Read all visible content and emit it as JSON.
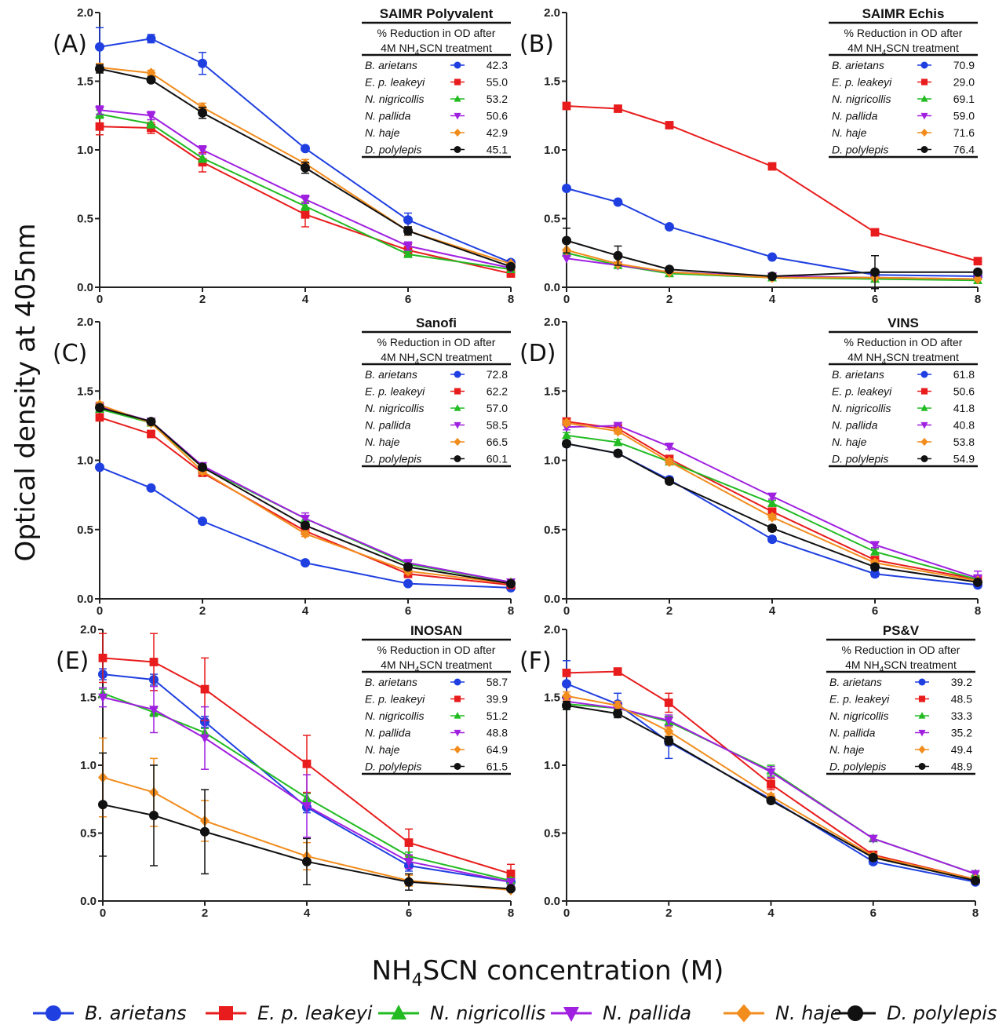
{
  "figure": {
    "ylabel": "Optical density at 405nm",
    "xlabel_main": "NH",
    "xlabel_sub": "4",
    "xlabel_rest": "SCN concentration (M)"
  },
  "series_styles": [
    {
      "name": "B. arietans",
      "color": "#1f3fe0",
      "marker": "circle"
    },
    {
      "name": "E. p. leakeyi",
      "color": "#e81c1c",
      "marker": "square"
    },
    {
      "name": "N. nigricollis",
      "color": "#22bb22",
      "marker": "triangle-up"
    },
    {
      "name": "N. pallida",
      "color": "#a020e0",
      "marker": "triangle-down"
    },
    {
      "name": "N. haje",
      "color": "#f28c1c",
      "marker": "diamond"
    },
    {
      "name": "D. polylepis",
      "color": "#111111",
      "marker": "circle"
    }
  ],
  "chart_data": [
    {
      "type": "line",
      "panel": "(A)",
      "title": "SAIMR Polyvalent",
      "table_header_1": "% Reduction in OD after",
      "table_header_2a": "4M NH",
      "table_header_2sub": "4",
      "table_header_2b": "SCN treatment",
      "x": [
        0,
        1,
        2,
        4,
        6,
        8
      ],
      "xticks": [
        0,
        2,
        4,
        6,
        8
      ],
      "ylim": [
        0,
        2
      ],
      "yticks": [
        "0.0",
        "0.5",
        "1.0",
        "1.5",
        "2.0"
      ],
      "series": [
        {
          "name": "B. arietans",
          "values": [
            1.75,
            1.81,
            1.63,
            1.01,
            0.49,
            0.18
          ],
          "err": [
            0.14,
            0.03,
            0.08,
            0.01,
            0.05,
            0.01
          ],
          "reduction": "42.3"
        },
        {
          "name": "E. p. leakeyi",
          "values": [
            1.17,
            1.16,
            0.91,
            0.53,
            0.27,
            0.1
          ],
          "err": [
            0.06,
            0.04,
            0.07,
            0.09,
            0.04,
            0.01
          ],
          "reduction": "55.0"
        },
        {
          "name": "N. nigricollis",
          "values": [
            1.26,
            1.19,
            0.94,
            0.59,
            0.24,
            0.13
          ],
          "err": [
            0.03,
            0.03,
            0.03,
            0.03,
            0.02,
            0.01
          ],
          "reduction": "53.2"
        },
        {
          "name": "N. pallida",
          "values": [
            1.29,
            1.25,
            1.0,
            0.64,
            0.3,
            0.14
          ],
          "err": [
            0.03,
            0.03,
            0.03,
            0.03,
            0.03,
            0.01
          ],
          "reduction": "50.6"
        },
        {
          "name": "N. haje",
          "values": [
            1.6,
            1.56,
            1.31,
            0.9,
            0.41,
            0.17
          ],
          "err": [
            0.03,
            0.02,
            0.03,
            0.03,
            0.03,
            0.01
          ],
          "reduction": "42.9"
        },
        {
          "name": "D. polylepis",
          "values": [
            1.59,
            1.51,
            1.27,
            0.87,
            0.41,
            0.15
          ],
          "err": [
            0.03,
            0.02,
            0.04,
            0.04,
            0.03,
            0.01
          ],
          "reduction": "45.1"
        }
      ]
    },
    {
      "type": "line",
      "panel": "(B)",
      "title": "SAIMR Echis",
      "table_header_1": "% Reduction in OD after",
      "table_header_2a": "4M NH",
      "table_header_2sub": "4",
      "table_header_2b": "SCN treatment",
      "x": [
        0,
        1,
        2,
        4,
        6,
        8
      ],
      "xticks": [
        0,
        2,
        4,
        6,
        8
      ],
      "ylim": [
        0,
        2
      ],
      "yticks": [
        "0.0",
        "0.5",
        "1.0",
        "1.5",
        "2.0"
      ],
      "series": [
        {
          "name": "B. arietans",
          "values": [
            0.72,
            0.62,
            0.44,
            0.22,
            0.09,
            0.08
          ],
          "err": [
            0.01,
            0.01,
            0.01,
            0.01,
            0.01,
            0.01
          ],
          "reduction": "70.9"
        },
        {
          "name": "E. p. leakeyi",
          "values": [
            1.32,
            1.3,
            1.18,
            0.88,
            0.4,
            0.19
          ],
          "err": [
            0.01,
            0.01,
            0.01,
            0.01,
            0.01,
            0.01
          ],
          "reduction": "29.0"
        },
        {
          "name": "N. nigricollis",
          "values": [
            0.25,
            0.16,
            0.1,
            0.07,
            0.06,
            0.05
          ],
          "err": [
            0.01,
            0.01,
            0.01,
            0.01,
            0.01,
            0.01
          ],
          "reduction": "69.1"
        },
        {
          "name": "N. pallida",
          "values": [
            0.21,
            0.16,
            0.11,
            0.08,
            0.07,
            0.06
          ],
          "err": [
            0.01,
            0.01,
            0.01,
            0.01,
            0.01,
            0.01
          ],
          "reduction": "59.0"
        },
        {
          "name": "N. haje",
          "values": [
            0.27,
            0.17,
            0.11,
            0.07,
            0.07,
            0.06
          ],
          "err": [
            0.01,
            0.01,
            0.01,
            0.01,
            0.01,
            0.01
          ],
          "reduction": "71.6"
        },
        {
          "name": "D. polylepis",
          "values": [
            0.34,
            0.23,
            0.13,
            0.08,
            0.11,
            0.11
          ],
          "err": [
            0.09,
            0.07,
            0.01,
            0.01,
            0.12,
            0.01
          ],
          "reduction": "76.4"
        }
      ]
    },
    {
      "type": "line",
      "panel": "(C)",
      "title": "Sanofi",
      "table_header_1": "% Reduction in OD after",
      "table_header_2a": "4M NH",
      "table_header_2sub": "4",
      "table_header_2b": "SCN treatment",
      "x": [
        0,
        1,
        2,
        4,
        6,
        8
      ],
      "xticks": [
        0,
        2,
        4,
        6,
        8
      ],
      "ylim": [
        0,
        2
      ],
      "yticks": [
        "0.0",
        "0.5",
        "1.0",
        "1.5",
        "2.0"
      ],
      "series": [
        {
          "name": "B. arietans",
          "values": [
            0.95,
            0.8,
            0.56,
            0.26,
            0.11,
            0.08
          ],
          "err": [
            0.01,
            0.01,
            0.01,
            0.01,
            0.01,
            0.01
          ],
          "reduction": "72.8"
        },
        {
          "name": "E. p. leakeyi",
          "values": [
            1.31,
            1.19,
            0.91,
            0.49,
            0.18,
            0.1
          ],
          "err": [
            0.02,
            0.02,
            0.02,
            0.02,
            0.02,
            0.01
          ],
          "reduction": "62.2"
        },
        {
          "name": "N. nigricollis",
          "values": [
            1.37,
            1.27,
            0.95,
            0.58,
            0.25,
            0.12
          ],
          "err": [
            0.02,
            0.02,
            0.02,
            0.02,
            0.02,
            0.01
          ],
          "reduction": "57.0"
        },
        {
          "name": "N. pallida",
          "values": [
            1.39,
            1.28,
            0.96,
            0.58,
            0.26,
            0.12
          ],
          "err": [
            0.02,
            0.02,
            0.02,
            0.04,
            0.02,
            0.01
          ],
          "reduction": "58.5"
        },
        {
          "name": "N. haje",
          "values": [
            1.4,
            1.27,
            0.92,
            0.47,
            0.2,
            0.11
          ],
          "err": [
            0.02,
            0.02,
            0.02,
            0.02,
            0.02,
            0.01
          ],
          "reduction": "66.5"
        },
        {
          "name": "D. polylepis",
          "values": [
            1.38,
            1.28,
            0.95,
            0.53,
            0.23,
            0.11
          ],
          "err": [
            0.02,
            0.02,
            0.02,
            0.02,
            0.02,
            0.01
          ],
          "reduction": "60.1"
        }
      ]
    },
    {
      "type": "line",
      "panel": "(D)",
      "title": "VINS",
      "table_header_1": "% Reduction in OD after",
      "table_header_2a": "4M NH",
      "table_header_2sub": "4",
      "table_header_2b": "SCN treatment",
      "x": [
        0,
        1,
        2,
        4,
        6,
        8
      ],
      "xticks": [
        0,
        2,
        4,
        6,
        8
      ],
      "ylim": [
        0,
        2
      ],
      "yticks": [
        "0.0",
        "0.5",
        "1.0",
        "1.5",
        "2.0"
      ],
      "series": [
        {
          "name": "B. arietans",
          "values": [
            1.12,
            1.05,
            0.86,
            0.43,
            0.18,
            0.1
          ],
          "err": [
            0.02,
            0.02,
            0.02,
            0.02,
            0.02,
            0.01
          ],
          "reduction": "61.8"
        },
        {
          "name": "E. p. leakeyi",
          "values": [
            1.28,
            1.23,
            1.01,
            0.63,
            0.28,
            0.14
          ],
          "err": [
            0.02,
            0.02,
            0.02,
            0.02,
            0.02,
            0.01
          ],
          "reduction": "50.6"
        },
        {
          "name": "N. nigricollis",
          "values": [
            1.18,
            1.13,
            0.99,
            0.69,
            0.34,
            0.14
          ],
          "err": [
            0.02,
            0.02,
            0.02,
            0.02,
            0.02,
            0.01
          ],
          "reduction": "41.8"
        },
        {
          "name": "N. pallida",
          "values": [
            1.24,
            1.25,
            1.1,
            0.74,
            0.39,
            0.15
          ],
          "err": [
            0.02,
            0.02,
            0.02,
            0.02,
            0.02,
            0.05
          ],
          "reduction": "40.8"
        },
        {
          "name": "N. haje",
          "values": [
            1.27,
            1.21,
            0.99,
            0.59,
            0.26,
            0.13
          ],
          "err": [
            0.02,
            0.02,
            0.02,
            0.02,
            0.02,
            0.01
          ],
          "reduction": "53.8"
        },
        {
          "name": "D. polylepis",
          "values": [
            1.12,
            1.05,
            0.85,
            0.51,
            0.23,
            0.12
          ],
          "err": [
            0.02,
            0.02,
            0.02,
            0.02,
            0.02,
            0.01
          ],
          "reduction": "54.9"
        }
      ]
    },
    {
      "type": "line",
      "panel": "(E)",
      "title": "INOSAN",
      "table_header_1": "% Reduction in OD after",
      "table_header_2a": "4M NH",
      "table_header_2sub": "4",
      "table_header_2b": "SCN treatment",
      "x": [
        0,
        1,
        2,
        4,
        6,
        8
      ],
      "xticks": [
        0,
        2,
        4,
        6,
        8
      ],
      "ylim": [
        0,
        2
      ],
      "yticks": [
        "0.0",
        "0.5",
        "1.0",
        "1.5",
        "2.0"
      ],
      "series": [
        {
          "name": "B. arietans",
          "values": [
            1.67,
            1.63,
            1.32,
            0.69,
            0.26,
            0.14
          ],
          "err": [
            0.04,
            0.04,
            0.04,
            0.04,
            0.04,
            0.02
          ],
          "reduction": "58.7"
        },
        {
          "name": "E. p. leakeyi",
          "values": [
            1.79,
            1.76,
            1.56,
            1.01,
            0.43,
            0.2
          ],
          "err": [
            0.18,
            0.21,
            0.23,
            0.21,
            0.1,
            0.07
          ],
          "reduction": "39.9"
        },
        {
          "name": "N. nigricollis",
          "values": [
            1.53,
            1.39,
            1.24,
            0.76,
            0.33,
            0.15
          ],
          "err": [
            0.03,
            0.03,
            0.03,
            0.03,
            0.03,
            0.02
          ],
          "reduction": "51.2"
        },
        {
          "name": "N. pallida",
          "values": [
            1.5,
            1.41,
            1.2,
            0.7,
            0.29,
            0.14
          ],
          "err": [
            0.07,
            0.17,
            0.23,
            0.23,
            0.05,
            0.02
          ],
          "reduction": "48.8"
        },
        {
          "name": "N. haje",
          "values": [
            0.91,
            0.8,
            0.59,
            0.33,
            0.15,
            0.08
          ],
          "err": [
            0.29,
            0.25,
            0.15,
            0.1,
            0.04,
            0.01
          ],
          "reduction": "64.9"
        },
        {
          "name": "D. polylepis",
          "values": [
            0.71,
            0.63,
            0.51,
            0.29,
            0.14,
            0.09
          ],
          "err": [
            0.38,
            0.37,
            0.31,
            0.17,
            0.06,
            0.01
          ],
          "reduction": "61.5"
        }
      ]
    },
    {
      "type": "line",
      "panel": "(F)",
      "title": "PS&V",
      "table_header_1": "% Reduction in OD after",
      "table_header_2a": "4M NH",
      "table_header_2sub": "4",
      "table_header_2b": "SCN treatment",
      "x": [
        0,
        1,
        2,
        4,
        6,
        8
      ],
      "xticks": [
        0,
        2,
        4,
        6,
        8
      ],
      "ylim": [
        0,
        2
      ],
      "yticks": [
        "0.0",
        "0.5",
        "1.0",
        "1.5",
        "2.0"
      ],
      "series": [
        {
          "name": "B. arietans",
          "values": [
            1.6,
            1.45,
            1.17,
            0.75,
            0.29,
            0.14
          ],
          "err": [
            0.17,
            0.08,
            0.12,
            0.02,
            0.02,
            0.01
          ],
          "reduction": "39.2"
        },
        {
          "name": "E. p. leakeyi",
          "values": [
            1.68,
            1.69,
            1.46,
            0.86,
            0.34,
            0.16
          ],
          "err": [
            0.02,
            0.02,
            0.07,
            0.04,
            0.02,
            0.01
          ],
          "reduction": "48.5"
        },
        {
          "name": "N. nigricollis",
          "values": [
            1.45,
            1.42,
            1.32,
            0.96,
            0.46,
            0.2
          ],
          "err": [
            0.04,
            0.04,
            0.04,
            0.04,
            0.02,
            0.01
          ],
          "reduction": "33.3"
        },
        {
          "name": "N. pallida",
          "values": [
            1.47,
            1.42,
            1.33,
            0.95,
            0.46,
            0.2
          ],
          "err": [
            0.04,
            0.04,
            0.04,
            0.04,
            0.02,
            0.01
          ],
          "reduction": "35.2"
        },
        {
          "name": "N. haje",
          "values": [
            1.51,
            1.44,
            1.25,
            0.77,
            0.33,
            0.16
          ],
          "err": [
            0.03,
            0.03,
            0.03,
            0.02,
            0.02,
            0.01
          ],
          "reduction": "49.4"
        },
        {
          "name": "D. polylepis",
          "values": [
            1.44,
            1.38,
            1.18,
            0.74,
            0.32,
            0.15
          ],
          "err": [
            0.03,
            0.03,
            0.03,
            0.02,
            0.02,
            0.01
          ],
          "reduction": "48.9"
        }
      ]
    }
  ]
}
